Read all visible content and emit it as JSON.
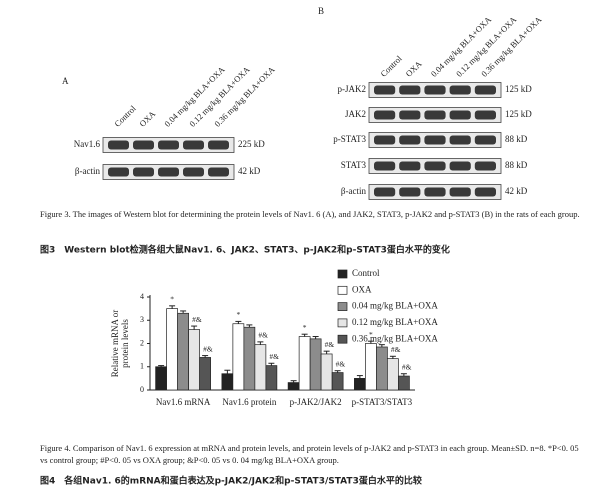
{
  "figure3": {
    "panel_a": {
      "label": "A",
      "lanes": [
        "Control",
        "OXA",
        "0.04 mg/kg BLA+OXA",
        "0.12 mg/kg BLA+OXA",
        "0.36 mg/kg BLA+OXA"
      ],
      "rows": [
        {
          "name": "Nav1.6",
          "size": "225 kD"
        },
        {
          "name": "β-actin",
          "size": "42 kD"
        }
      ]
    },
    "panel_b": {
      "label": "B",
      "lanes": [
        "Control",
        "OXA",
        "0.04 mg/kg BLA+OXA",
        "0.12 mg/kg BLA+OXA",
        "0.36 mg/kg BLA+OXA"
      ],
      "rows": [
        {
          "name": "p-JAK2",
          "size": "125 kD"
        },
        {
          "name": "JAK2",
          "size": "125 kD"
        },
        {
          "name": "p-STAT3",
          "size": "88 kD"
        },
        {
          "name": "STAT3",
          "size": "88 kD"
        },
        {
          "name": "β-actin",
          "size": "42 kD"
        }
      ]
    },
    "caption_en": "Figure 3.  The images of Western blot for determining the protein levels of Nav1. 6 (A), and JAK2, STAT3, p-JAK2 and p-STAT3 (B) in the rats of each group.",
    "caption_zh": "图3　Western blot检测各组大鼠Nav1. 6、JAK2、STAT3、p-JAK2和p-STAT3蛋白水平的变化"
  },
  "chart_data": {
    "type": "bar",
    "ylabel": [
      "Relative mRNA or",
      "protein levels"
    ],
    "categories": [
      "Nav1.6 mRNA",
      "Nav1.6 protein",
      "p-JAK2/JAK2",
      "p-STAT3/STAT3"
    ],
    "ylim": [
      0,
      4
    ],
    "yticks": [
      0,
      1,
      2,
      3,
      4
    ],
    "series": [
      {
        "name": "Control",
        "color": "#222222",
        "values": [
          1.0,
          0.7,
          0.32,
          0.5
        ],
        "errors": [
          0.05,
          0.15,
          0.08,
          0.12
        ]
      },
      {
        "name": "OXA",
        "color": "#ffffff",
        "values": [
          3.5,
          2.85,
          2.3,
          2.0
        ],
        "errors": [
          0.12,
          0.1,
          0.1,
          0.1
        ],
        "annotations": [
          "*",
          "*",
          "*",
          "*"
        ]
      },
      {
        "name": "0.04 mg/kg BLA+OXA",
        "color": "#8c8c8c",
        "values": [
          3.3,
          2.7,
          2.2,
          1.85
        ],
        "errors": [
          0.1,
          0.1,
          0.1,
          0.1
        ]
      },
      {
        "name": "0.12 mg/kg BLA+OXA",
        "color": "#e6e6e6",
        "values": [
          2.6,
          1.95,
          1.55,
          1.35
        ],
        "errors": [
          0.15,
          0.12,
          0.12,
          0.1
        ],
        "annotations": [
          "#&",
          "#&",
          "#&",
          "#&"
        ]
      },
      {
        "name": "0.36 mg/kg BLA+OXA",
        "color": "#555555",
        "values": [
          1.4,
          1.05,
          0.75,
          0.6
        ],
        "errors": [
          0.08,
          0.1,
          0.08,
          0.1
        ],
        "annotations": [
          "#&",
          "#&",
          "#&",
          "#&"
        ]
      }
    ]
  },
  "figure4": {
    "caption_en": "Figure 4.  Comparison of Nav1. 6 expression at mRNA and protein levels, and protein levels of p-JAK2 and p-STAT3 in each group. Mean±SD. n=8. *P<0. 05 vs control group; #P<0. 05 vs OXA group; &P<0. 05 vs 0. 04 mg/kg BLA+OXA group.",
    "caption_zh": "图4　各组Nav1. 6的mRNA和蛋白表达及p-JAK2/JAK2和p-STAT3/STAT3蛋白水平的比较"
  }
}
